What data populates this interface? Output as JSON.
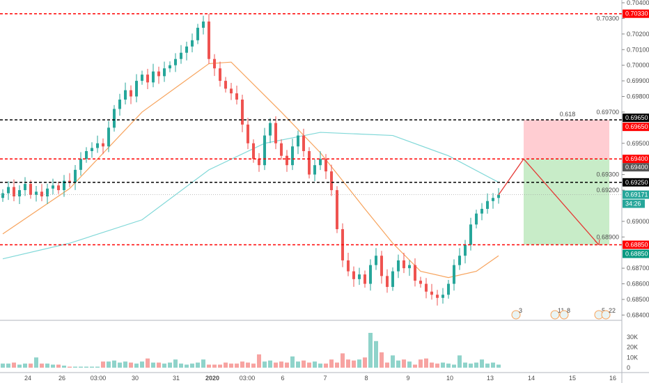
{
  "chart_data": {
    "type": "candlestick",
    "y_axis": {
      "range": [
        0.684,
        0.704
      ],
      "ticks": [
        "0.70400",
        "0.70300",
        "0.70200",
        "0.70100",
        "0.70000",
        "0.69900",
        "0.69800",
        "0.69700",
        "0.69500",
        "0.69300",
        "0.69200",
        "0.69000",
        "0.68900",
        "0.68700",
        "0.68600",
        "0.68500",
        "0.68400"
      ]
    },
    "x_axis": {
      "ticks": [
        "24",
        "26",
        "03:00",
        "30",
        "31",
        "2020",
        "03:00",
        "6",
        "7",
        "8",
        "9",
        "10",
        "13",
        "14",
        "15",
        "16"
      ]
    },
    "closes": [
      0.6918,
      0.6922,
      0.6916,
      0.692,
      0.6924,
      0.6917,
      0.6919,
      0.6916,
      0.6921,
      0.6923,
      0.692,
      0.6926,
      0.6925,
      0.6933,
      0.694,
      0.6945,
      0.6947,
      0.695,
      0.6948,
      0.696,
      0.6972,
      0.6978,
      0.6984,
      0.698,
      0.699,
      0.6994,
      0.6989,
      0.6996,
      0.6993,
      0.6998,
      0.7,
      0.7004,
      0.7008,
      0.7012,
      0.7016,
      0.7024,
      0.7028,
      0.7004,
      0.6998,
      0.699,
      0.6985,
      0.6982,
      0.6978,
      0.6962,
      0.695,
      0.694,
      0.6936,
      0.6955,
      0.6963,
      0.695,
      0.6942,
      0.6936,
      0.6948,
      0.6955,
      0.6945,
      0.693,
      0.6936,
      0.694,
      0.6932,
      0.692,
      0.6895,
      0.6875,
      0.6868,
      0.6863,
      0.6866,
      0.686,
      0.6872,
      0.6878,
      0.6865,
      0.6858,
      0.6868,
      0.6875,
      0.687,
      0.6872,
      0.6862,
      0.686,
      0.6855,
      0.6853,
      0.6851,
      0.6853,
      0.686,
      0.6872,
      0.6878,
      0.6885,
      0.6898,
      0.6905,
      0.6908,
      0.6913,
      0.6915,
      0.6917
    ],
    "volume": {
      "ticks": [
        "30K",
        "20K",
        "10K",
        "0"
      ],
      "values": [
        4,
        4,
        5,
        3,
        4,
        4,
        10,
        4,
        4,
        3,
        3,
        2,
        1,
        1,
        1,
        1,
        1,
        1,
        6,
        6,
        7,
        5,
        6,
        5,
        4,
        6,
        9,
        5,
        5,
        4,
        5,
        8,
        4,
        3,
        4,
        5,
        8,
        3,
        3,
        3,
        5,
        4,
        4,
        6,
        5,
        4,
        13,
        6,
        7,
        5,
        6,
        5,
        11,
        6,
        7,
        5,
        6,
        4,
        4,
        8,
        5,
        14,
        8,
        7,
        8,
        10,
        34,
        26,
        15,
        5,
        12,
        7,
        8,
        6,
        3,
        8,
        9,
        5,
        4,
        5,
        4,
        3,
        12,
        5,
        4,
        5,
        8,
        4,
        5,
        3
      ]
    },
    "ma_fast": {
      "color": "#f7a35c",
      "points": [
        [
          0,
          0.6892
        ],
        [
          12,
          0.6921
        ],
        [
          25,
          0.697
        ],
        [
          37,
          0.7001
        ],
        [
          41,
          0.7002
        ],
        [
          50,
          0.697
        ],
        [
          57,
          0.6944
        ],
        [
          65,
          0.6908
        ],
        [
          70,
          0.6886
        ],
        [
          75,
          0.6868
        ],
        [
          80,
          0.6864
        ],
        [
          85,
          0.6868
        ],
        [
          89,
          0.6878
        ]
      ]
    },
    "ma_slow": {
      "color": "#80d8d8",
      "points": [
        [
          0,
          0.6876
        ],
        [
          12,
          0.6886
        ],
        [
          25,
          0.6901
        ],
        [
          37,
          0.6933
        ],
        [
          47,
          0.695
        ],
        [
          57,
          0.6957
        ],
        [
          70,
          0.6955
        ],
        [
          80,
          0.6942
        ],
        [
          89,
          0.6925
        ]
      ]
    },
    "levels": [
      {
        "price": 0.7033,
        "label": "0.70330",
        "color": "#ff0000"
      },
      {
        "price": 0.6965,
        "label": "0.69650",
        "color": "#000000"
      },
      {
        "price": 0.694,
        "label": "0.69400",
        "color": "#ff0000"
      },
      {
        "price": 0.6925,
        "label": "0.69250",
        "color": "#000000"
      },
      {
        "price": 0.6885,
        "label": "0.68850",
        "color": "#ff0000"
      }
    ],
    "position": {
      "entry": 0.694,
      "stop": 0.6965,
      "target": 0.6885,
      "entry_label": "0.69400",
      "stop_label": "0.69650",
      "target_label": "0.68850",
      "fib_label": "0.618"
    },
    "current_price": {
      "label": "0.69171",
      "value": 0.69171,
      "countdown": "34:26",
      "color": "#26a69a"
    },
    "events": [
      "3",
      "11",
      "8",
      "5",
      "22"
    ],
    "colors": {
      "up": "#26a69a",
      "down": "#ef5350",
      "vol_up": "#8fd3ca",
      "vol_down": "#f7a3a1"
    }
  }
}
